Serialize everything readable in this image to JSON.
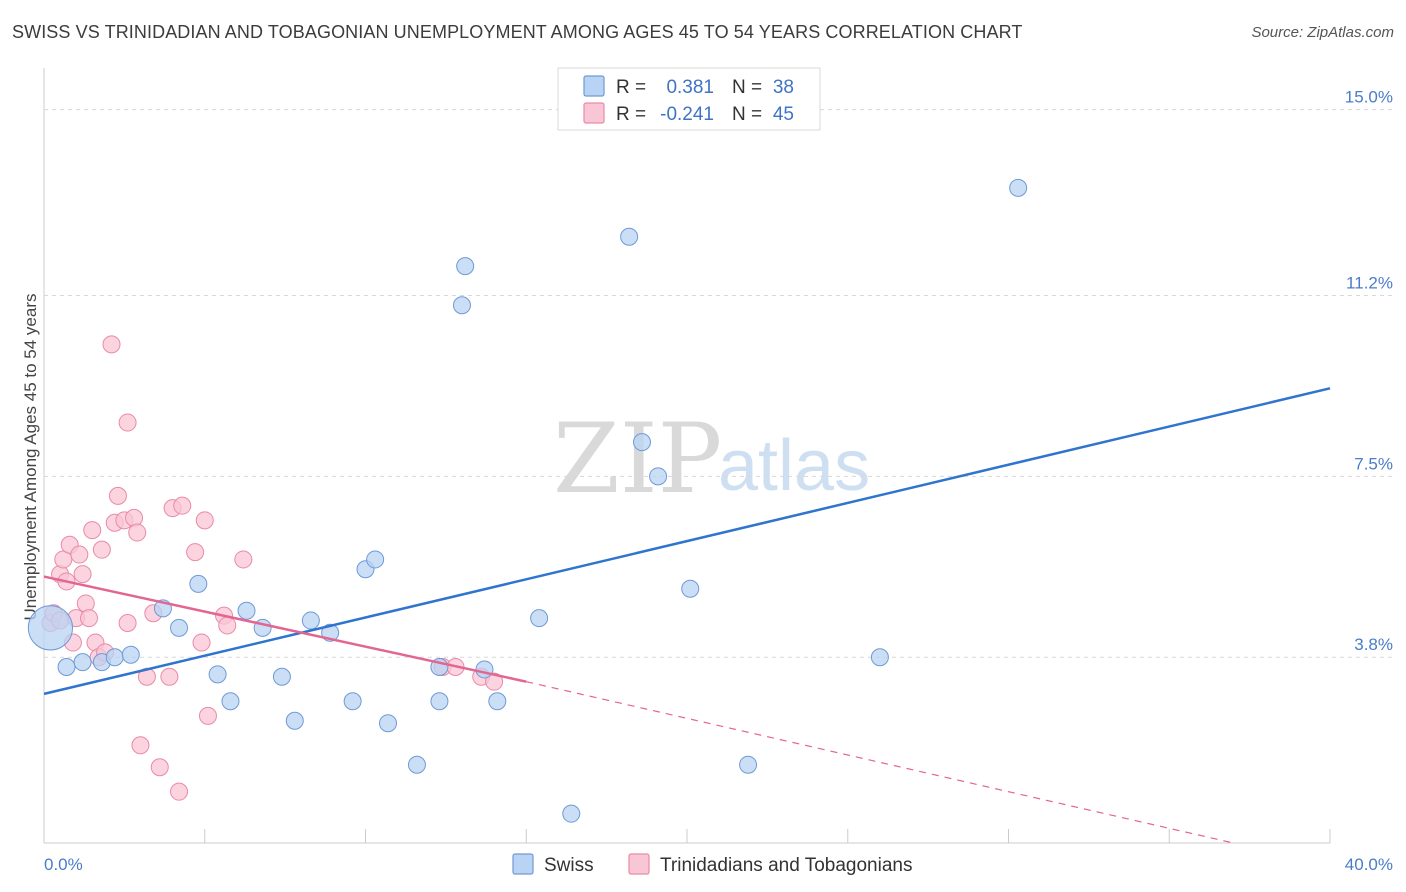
{
  "title": "SWISS VS TRINIDADIAN AND TOBAGONIAN UNEMPLOYMENT AMONG AGES 45 TO 54 YEARS CORRELATION CHART",
  "source": "Source: ZipAtlas.com",
  "colors": {
    "swiss_fill": "#b8d3f3",
    "swiss_stroke": "#6f9ad6",
    "swiss_line": "#2f74cf",
    "trini_fill": "#f9c6d6",
    "trini_stroke": "#e98aa9",
    "trini_line": "#e36591",
    "grid": "#d8d8d8",
    "axis_text": "#4a7cc9"
  },
  "legend": {
    "r_label": "R =",
    "n_label": "N =",
    "swiss_r": "0.381",
    "swiss_n": "38",
    "trini_r": "-0.241",
    "trini_n": "45"
  },
  "watermark": {
    "zip": "ZIP",
    "atlas": "atlas"
  },
  "chart_data": {
    "type": "scatter",
    "title": "SWISS VS TRINIDADIAN AND TOBAGONIAN UNEMPLOYMENT AMONG AGES 45 TO 54 YEARS CORRELATION CHART",
    "xlabel": "",
    "ylabel": "Unemployment Among Ages 45 to 54 years",
    "xlim": [
      0,
      40
    ],
    "ylim": [
      0,
      15.75
    ],
    "x_tick_labels": [
      "0.0%",
      "40.0%"
    ],
    "y_ticks": [
      3.8,
      7.5,
      11.2,
      15.0
    ],
    "y_tick_labels": [
      "3.8%",
      "7.5%",
      "11.2%",
      "15.0%"
    ],
    "legend_position": "bottom-center",
    "series": [
      {
        "name": "Swiss",
        "r": 0.381,
        "n": 38,
        "trend": {
          "x": [
            0,
            40
          ],
          "y": [
            3.05,
            9.3
          ]
        },
        "points": [
          [
            0.2,
            4.4,
            2.6
          ],
          [
            0.7,
            3.6,
            1
          ],
          [
            1.2,
            3.7,
            1
          ],
          [
            1.8,
            3.7,
            1
          ],
          [
            2.2,
            3.8,
            1
          ],
          [
            2.7,
            3.85,
            1
          ],
          [
            3.7,
            4.8,
            1
          ],
          [
            4.2,
            4.4,
            1
          ],
          [
            4.8,
            5.3,
            1
          ],
          [
            5.4,
            3.45,
            1
          ],
          [
            5.8,
            2.9,
            1
          ],
          [
            6.3,
            4.75,
            1
          ],
          [
            6.8,
            4.4,
            1
          ],
          [
            7.4,
            3.4,
            1
          ],
          [
            7.8,
            2.5,
            1
          ],
          [
            8.3,
            4.55,
            1
          ],
          [
            8.9,
            4.3,
            1
          ],
          [
            9.6,
            2.9,
            1
          ],
          [
            10.0,
            5.6,
            1
          ],
          [
            10.3,
            5.8,
            1
          ],
          [
            10.7,
            2.45,
            1
          ],
          [
            11.6,
            1.6,
            1
          ],
          [
            12.3,
            2.9,
            1
          ],
          [
            12.3,
            3.6,
            1
          ],
          [
            13.0,
            11.0,
            1
          ],
          [
            13.1,
            11.8,
            1
          ],
          [
            13.7,
            3.55,
            1
          ],
          [
            14.1,
            2.9,
            1
          ],
          [
            15.4,
            4.6,
            1
          ],
          [
            16.4,
            0.6,
            1
          ],
          [
            18.2,
            12.4,
            1
          ],
          [
            18.6,
            8.2,
            1
          ],
          [
            19.1,
            7.5,
            1
          ],
          [
            20.1,
            5.2,
            1
          ],
          [
            21.9,
            1.6,
            1
          ],
          [
            26.0,
            3.8,
            1
          ],
          [
            30.3,
            13.4,
            1
          ]
        ]
      },
      {
        "name": "Trinidadians and Tobagonians",
        "r": -0.241,
        "n": 45,
        "trend": {
          "x": [
            0,
            15
          ],
          "y": [
            5.45,
            3.3
          ]
        },
        "trend_dashed": {
          "x": [
            15,
            37
          ],
          "y": [
            3.3,
            0
          ]
        },
        "points": [
          [
            0.2,
            4.5,
            1
          ],
          [
            0.3,
            4.7,
            1
          ],
          [
            0.5,
            4.55,
            1
          ],
          [
            0.5,
            5.5,
            1
          ],
          [
            0.6,
            5.8,
            1
          ],
          [
            0.7,
            5.35,
            1
          ],
          [
            0.8,
            6.1,
            1
          ],
          [
            0.9,
            4.1,
            1
          ],
          [
            1.0,
            4.6,
            1
          ],
          [
            1.1,
            5.9,
            1
          ],
          [
            1.2,
            5.5,
            1
          ],
          [
            1.3,
            4.9,
            1
          ],
          [
            1.4,
            4.6,
            1
          ],
          [
            1.5,
            6.4,
            1
          ],
          [
            1.6,
            4.1,
            1
          ],
          [
            1.7,
            3.8,
            1
          ],
          [
            1.8,
            6.0,
            1
          ],
          [
            1.9,
            3.9,
            1
          ],
          [
            2.1,
            10.2,
            1
          ],
          [
            2.2,
            6.55,
            1
          ],
          [
            2.3,
            7.1,
            1
          ],
          [
            2.5,
            6.6,
            1
          ],
          [
            2.6,
            4.5,
            1
          ],
          [
            2.6,
            8.6,
            1
          ],
          [
            2.8,
            6.65,
            1
          ],
          [
            2.9,
            6.35,
            1
          ],
          [
            3.0,
            2.0,
            1
          ],
          [
            3.2,
            3.4,
            1
          ],
          [
            3.4,
            4.7,
            1
          ],
          [
            3.6,
            1.55,
            1
          ],
          [
            3.9,
            3.4,
            1
          ],
          [
            4.0,
            6.85,
            1
          ],
          [
            4.2,
            1.05,
            1
          ],
          [
            4.3,
            6.9,
            1
          ],
          [
            4.7,
            5.95,
            1
          ],
          [
            4.9,
            4.1,
            1
          ],
          [
            5.0,
            6.6,
            1
          ],
          [
            5.1,
            2.6,
            1
          ],
          [
            5.6,
            4.65,
            1
          ],
          [
            5.7,
            4.45,
            1
          ],
          [
            6.2,
            5.8,
            1
          ],
          [
            12.4,
            3.6,
            1
          ],
          [
            12.8,
            3.6,
            1
          ],
          [
            13.6,
            3.4,
            1
          ],
          [
            14.0,
            3.3,
            1
          ]
        ]
      }
    ]
  }
}
